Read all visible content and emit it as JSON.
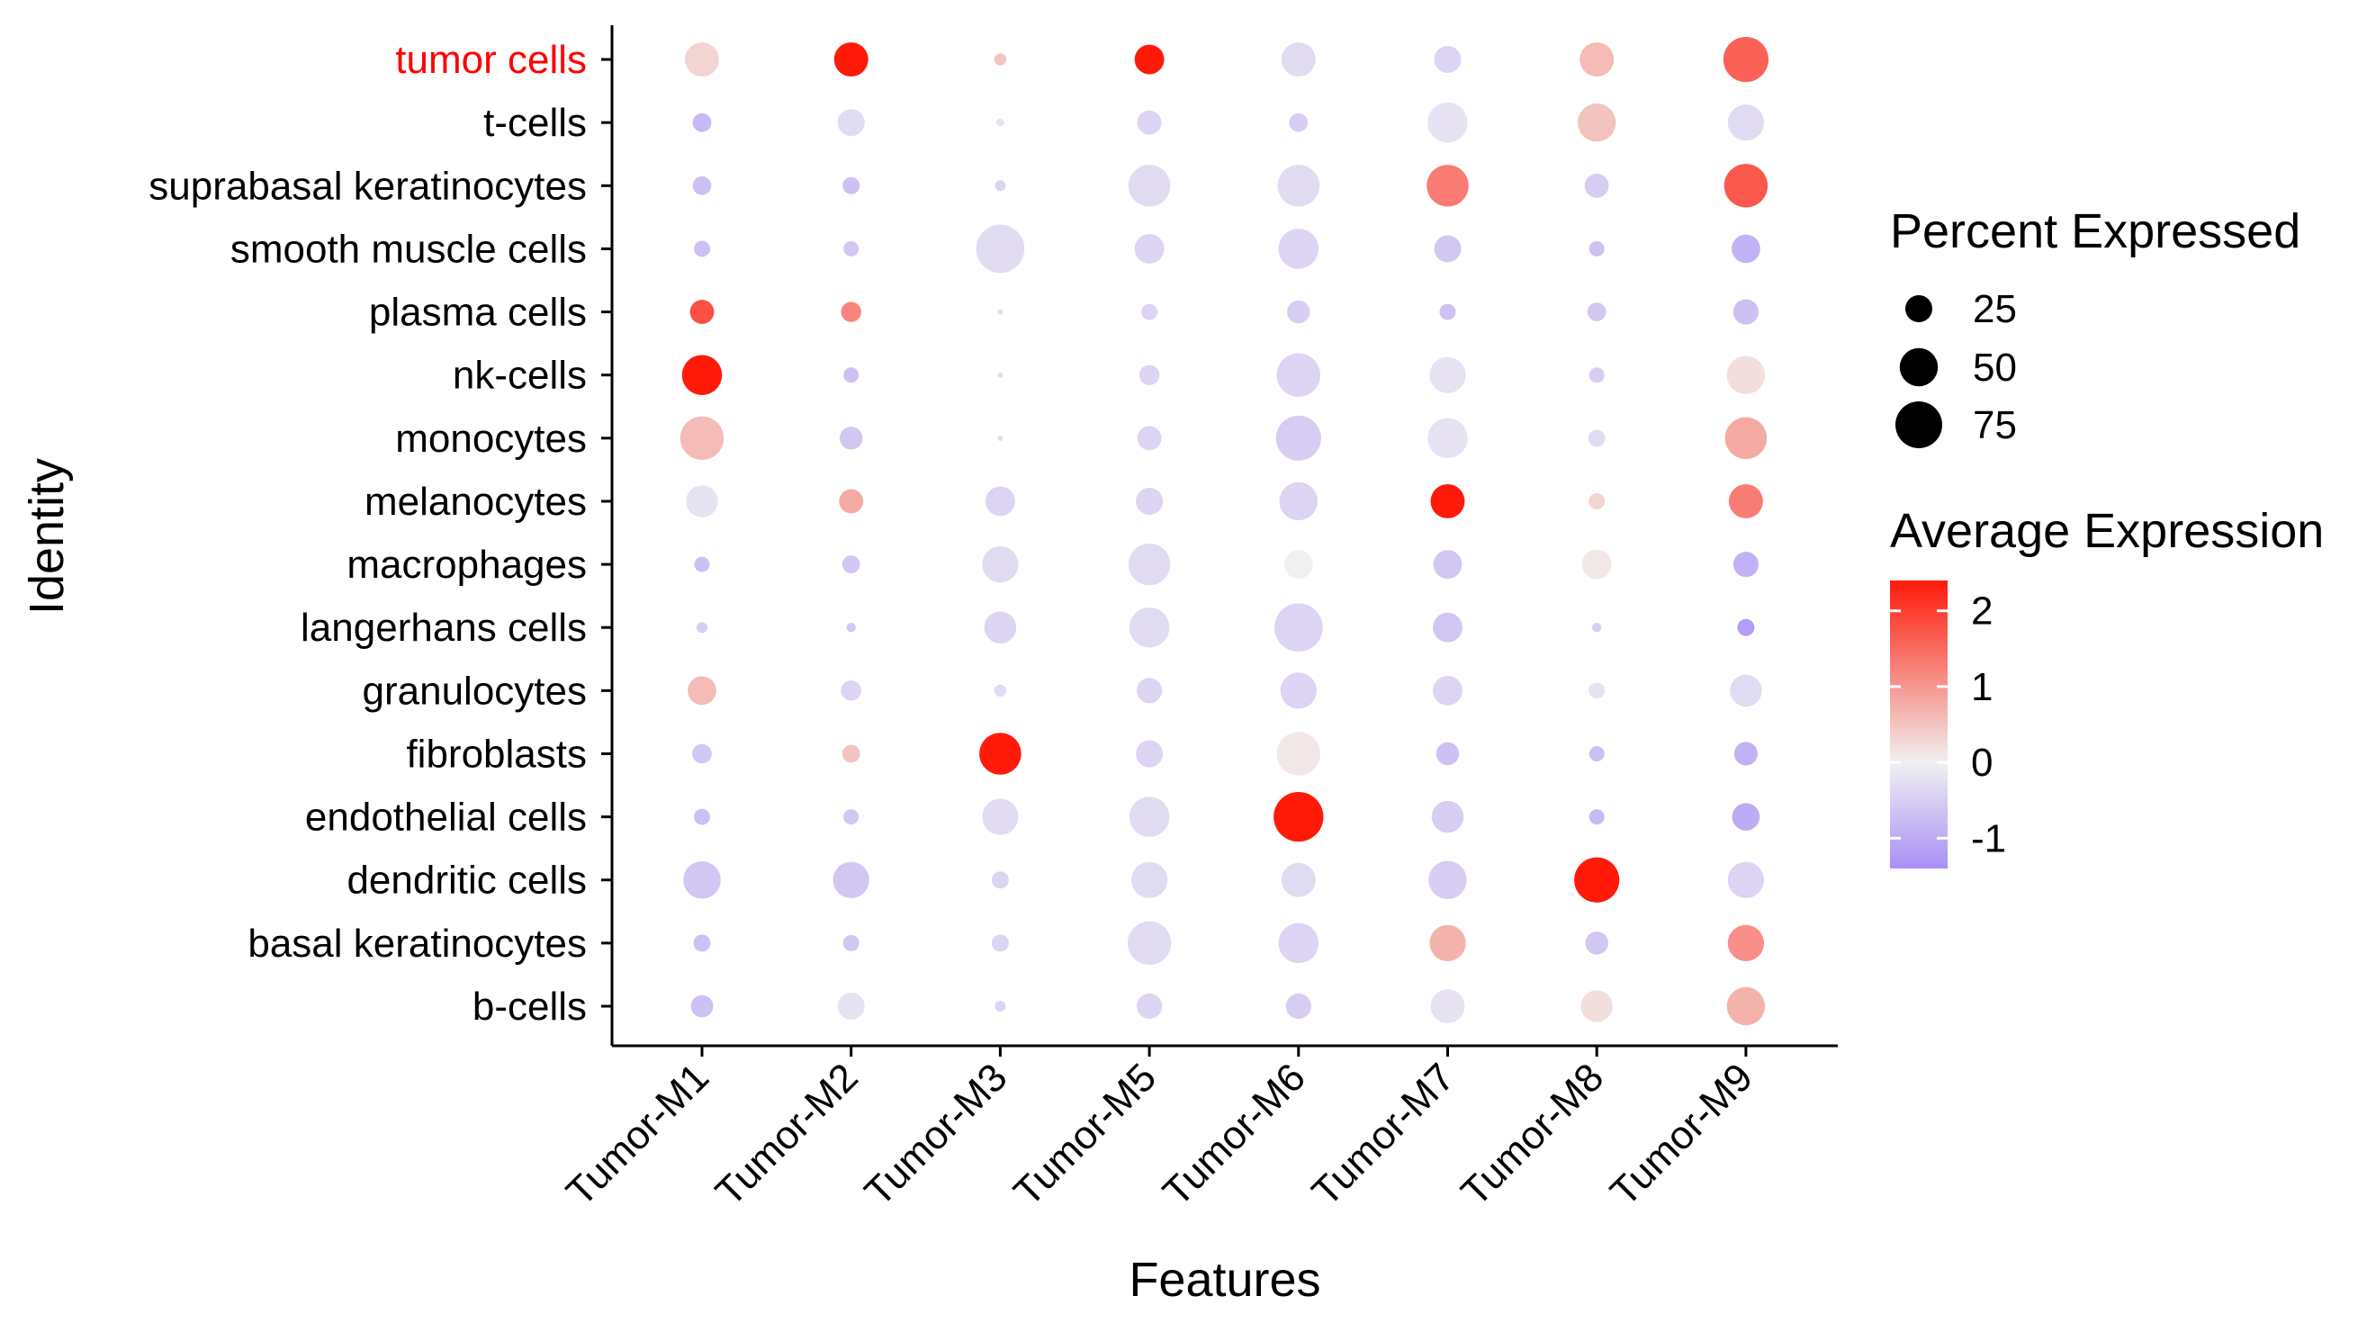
{
  "chart_data": {
    "type": "dotplot",
    "xlabel": "Features",
    "ylabel": "Identity",
    "categories": [
      "Tumor-M1",
      "Tumor-M2",
      "Tumor-M3",
      "Tumor-M5",
      "Tumor-M6",
      "Tumor-M7",
      "Tumor-M8",
      "Tumor-M9"
    ],
    "identities": [
      "b-cells",
      "basal keratinocytes",
      "dendritic cells",
      "endothelial cells",
      "fibroblasts",
      "granulocytes",
      "langerhans cells",
      "macrophages",
      "melanocytes",
      "monocytes",
      "nk-cells",
      "plasma cells",
      "smooth muscle cells",
      "suprabasal keratinocytes",
      "t-cells",
      "tumor cells"
    ],
    "highlighted_identity": "tumor cells",
    "highlight_color": "#ff0000",
    "color_scale": {
      "low": "#a98ff7",
      "mid": "#f0f0f0",
      "high": "#ff1a0a",
      "range": [
        -1.4,
        2.4
      ]
    },
    "legend_size": {
      "title": "Percent Expressed",
      "values": [
        25,
        50,
        75
      ],
      "labels": [
        "25",
        "50",
        "75"
      ]
    },
    "legend_color": {
      "title": "Average Expression",
      "ticks": [
        2,
        1,
        0,
        -1
      ],
      "tick_labels": [
        "2",
        "1",
        "0",
        "-1"
      ]
    },
    "points": [
      {
        "row": "tumor cells",
        "values": [
          [
            40,
            0.3
          ],
          [
            40,
            2.4
          ],
          [
            5,
            0.5
          ],
          [
            30,
            2.4
          ],
          [
            40,
            -0.3
          ],
          [
            25,
            -0.4
          ],
          [
            40,
            0.6
          ],
          [
            70,
            1.6
          ]
        ]
      },
      {
        "row": "t-cells",
        "values": [
          [
            12,
            -0.8
          ],
          [
            25,
            -0.3
          ],
          [
            2,
            -0.2
          ],
          [
            20,
            -0.4
          ],
          [
            12,
            -0.5
          ],
          [
            55,
            -0.2
          ],
          [
            50,
            0.5
          ],
          [
            45,
            -0.3
          ]
        ]
      },
      {
        "row": "suprabasal keratinocytes",
        "values": [
          [
            12,
            -0.7
          ],
          [
            10,
            -0.7
          ],
          [
            4,
            -0.4
          ],
          [
            60,
            -0.3
          ],
          [
            60,
            -0.3
          ],
          [
            60,
            1.3
          ],
          [
            20,
            -0.5
          ],
          [
            65,
            1.7
          ]
        ]
      },
      {
        "row": "smooth muscle cells",
        "values": [
          [
            9,
            -0.7
          ],
          [
            8,
            -0.6
          ],
          [
            80,
            -0.3
          ],
          [
            30,
            -0.4
          ],
          [
            55,
            -0.4
          ],
          [
            25,
            -0.6
          ],
          [
            8,
            -0.7
          ],
          [
            28,
            -0.9
          ]
        ]
      },
      {
        "row": "plasma cells",
        "values": [
          [
            20,
            1.8
          ],
          [
            14,
            1.2
          ],
          [
            1,
            -0.3
          ],
          [
            9,
            -0.4
          ],
          [
            18,
            -0.5
          ],
          [
            9,
            -0.7
          ],
          [
            12,
            -0.6
          ],
          [
            22,
            -0.7
          ]
        ]
      },
      {
        "row": "nk-cells",
        "values": [
          [
            55,
            2.4
          ],
          [
            8,
            -0.7
          ],
          [
            1,
            -0.3
          ],
          [
            14,
            -0.4
          ],
          [
            65,
            -0.4
          ],
          [
            45,
            -0.2
          ],
          [
            8,
            -0.5
          ],
          [
            50,
            0.2
          ]
        ]
      },
      {
        "row": "monocytes",
        "values": [
          [
            65,
            0.6
          ],
          [
            18,
            -0.6
          ],
          [
            1,
            -0.3
          ],
          [
            20,
            -0.4
          ],
          [
            70,
            -0.5
          ],
          [
            55,
            -0.2
          ],
          [
            10,
            -0.3
          ],
          [
            60,
            0.8
          ]
        ]
      },
      {
        "row": "melanocytes",
        "values": [
          [
            35,
            -0.2
          ],
          [
            20,
            0.8
          ],
          [
            30,
            -0.4
          ],
          [
            25,
            -0.4
          ],
          [
            50,
            -0.4
          ],
          [
            40,
            2.4
          ],
          [
            9,
            0.3
          ],
          [
            40,
            1.3
          ]
        ]
      },
      {
        "row": "macrophages",
        "values": [
          [
            8,
            -0.7
          ],
          [
            11,
            -0.6
          ],
          [
            45,
            -0.3
          ],
          [
            60,
            -0.3
          ],
          [
            28,
            0
          ],
          [
            28,
            -0.6
          ],
          [
            30,
            0.1
          ],
          [
            22,
            -0.9
          ]
        ]
      },
      {
        "row": "langerhans cells",
        "values": [
          [
            4,
            -0.5
          ],
          [
            3,
            -0.6
          ],
          [
            35,
            -0.4
          ],
          [
            55,
            -0.3
          ],
          [
            80,
            -0.4
          ],
          [
            30,
            -0.6
          ],
          [
            3,
            -0.5
          ],
          [
            10,
            -1.2
          ]
        ]
      },
      {
        "row": "granulocytes",
        "values": [
          [
            28,
            0.6
          ],
          [
            14,
            -0.4
          ],
          [
            5,
            -0.3
          ],
          [
            22,
            -0.4
          ],
          [
            45,
            -0.4
          ],
          [
            30,
            -0.4
          ],
          [
            9,
            -0.2
          ],
          [
            35,
            -0.3
          ]
        ]
      },
      {
        "row": "fibroblasts",
        "values": [
          [
            13,
            -0.6
          ],
          [
            11,
            0.5
          ],
          [
            60,
            2.4
          ],
          [
            25,
            -0.4
          ],
          [
            65,
            0.1
          ],
          [
            18,
            -0.7
          ],
          [
            8,
            -0.7
          ],
          [
            19,
            -0.9
          ]
        ]
      },
      {
        "row": "endothelial cells",
        "values": [
          [
            9,
            -0.7
          ],
          [
            8,
            -0.6
          ],
          [
            45,
            -0.3
          ],
          [
            55,
            -0.3
          ],
          [
            85,
            2.4
          ],
          [
            35,
            -0.5
          ],
          [
            8,
            -0.8
          ],
          [
            26,
            -1.0
          ]
        ]
      },
      {
        "row": "dendritic cells",
        "values": [
          [
            48,
            -0.6
          ],
          [
            45,
            -0.6
          ],
          [
            10,
            -0.4
          ],
          [
            45,
            -0.3
          ],
          [
            40,
            -0.3
          ],
          [
            50,
            -0.5
          ],
          [
            70,
            2.4
          ],
          [
            45,
            -0.4
          ]
        ]
      },
      {
        "row": "basal keratinocytes",
        "values": [
          [
            10,
            -0.7
          ],
          [
            9,
            -0.6
          ],
          [
            10,
            -0.4
          ],
          [
            65,
            -0.3
          ],
          [
            55,
            -0.4
          ],
          [
            45,
            0.7
          ],
          [
            18,
            -0.6
          ],
          [
            45,
            1.1
          ]
        ]
      },
      {
        "row": "b-cells",
        "values": [
          [
            17,
            -0.7
          ],
          [
            25,
            -0.2
          ],
          [
            4,
            -0.4
          ],
          [
            22,
            -0.4
          ],
          [
            22,
            -0.5
          ],
          [
            40,
            -0.2
          ],
          [
            35,
            0.2
          ],
          [
            50,
            0.7
          ]
        ]
      }
    ]
  }
}
